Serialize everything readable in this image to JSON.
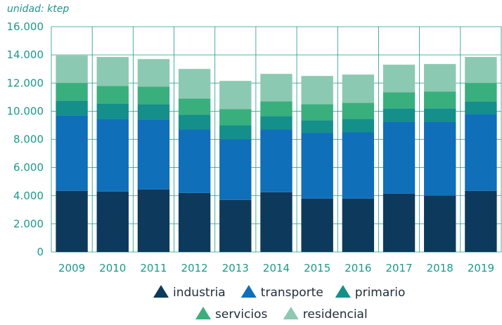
{
  "chart_data": {
    "type": "bar",
    "stacked": true,
    "unit_label": "unidad: ktep",
    "title": "",
    "xlabel": "",
    "ylabel": "",
    "ylim": [
      0,
      16000
    ],
    "y_ticks": [
      0,
      2000,
      4000,
      6000,
      8000,
      10000,
      12000,
      14000,
      16000
    ],
    "y_tick_labels": [
      "0",
      "2.000",
      "4.000",
      "6.000",
      "8.000",
      "10.000",
      "12.000",
      "14.000",
      "16.000"
    ],
    "grid": true,
    "legend_position": "bottom",
    "categories": [
      "2009",
      "2010",
      "2011",
      "2012",
      "2013",
      "2014",
      "2015",
      "2016",
      "2017",
      "2018",
      "2019"
    ],
    "series": [
      {
        "name": "industria",
        "color": "#0d3a5c",
        "values": [
          4350,
          4300,
          4450,
          4200,
          3700,
          4250,
          3800,
          3800,
          4150,
          4000,
          4350
        ]
      },
      {
        "name": "transporte",
        "color": "#0f6fb8",
        "values": [
          5350,
          5150,
          4950,
          4500,
          4300,
          4450,
          4650,
          4700,
          5100,
          5250,
          5450
        ]
      },
      {
        "name": "primario",
        "color": "#148f8a",
        "values": [
          1050,
          1100,
          1100,
          1050,
          1000,
          950,
          900,
          950,
          950,
          950,
          900
        ]
      },
      {
        "name": "servicios",
        "color": "#3aaf7e",
        "values": [
          1250,
          1250,
          1250,
          1150,
          1150,
          1050,
          1150,
          1150,
          1150,
          1200,
          1300
        ]
      },
      {
        "name": "residencial",
        "color": "#8cc9b2",
        "values": [
          1950,
          2050,
          1950,
          2100,
          2000,
          1950,
          2000,
          2000,
          1950,
          1950,
          1850
        ]
      }
    ]
  }
}
